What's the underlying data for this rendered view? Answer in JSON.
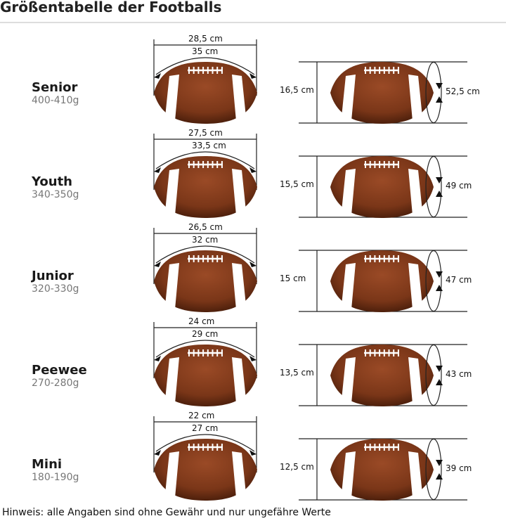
{
  "title": "Größentabelle der Footballs",
  "rows": [
    {
      "name": "Senior",
      "weight": "400-410g",
      "length": "28,5 cm",
      "arc": "35 cm",
      "height": "16,5 cm",
      "circumference": "52,5 cm"
    },
    {
      "name": "Youth",
      "weight": "340-350g",
      "length": "27,5 cm",
      "arc": "33,5 cm",
      "height": "15,5 cm",
      "circumference": "49 cm"
    },
    {
      "name": "Junior",
      "weight": "320-330g",
      "length": "26,5 cm",
      "arc": "32 cm",
      "height": "15 cm",
      "circumference": "47 cm"
    },
    {
      "name": "Peewee",
      "weight": "270-280g",
      "length": "24 cm",
      "arc": "29 cm",
      "height": "13,5 cm",
      "circumference": "43 cm"
    },
    {
      "name": "Mini",
      "weight": "180-190g",
      "length": "22 cm",
      "arc": "27 cm",
      "height": "12,5 cm",
      "circumference": "39 cm"
    }
  ],
  "note": "Hinweis: alle Angaben sind ohne Gewähr und nur ungefähre Werte",
  "colors": {
    "ball": "#8a3f1f",
    "ball_dark": "#5a2510",
    "stripe": "#ffffff"
  }
}
